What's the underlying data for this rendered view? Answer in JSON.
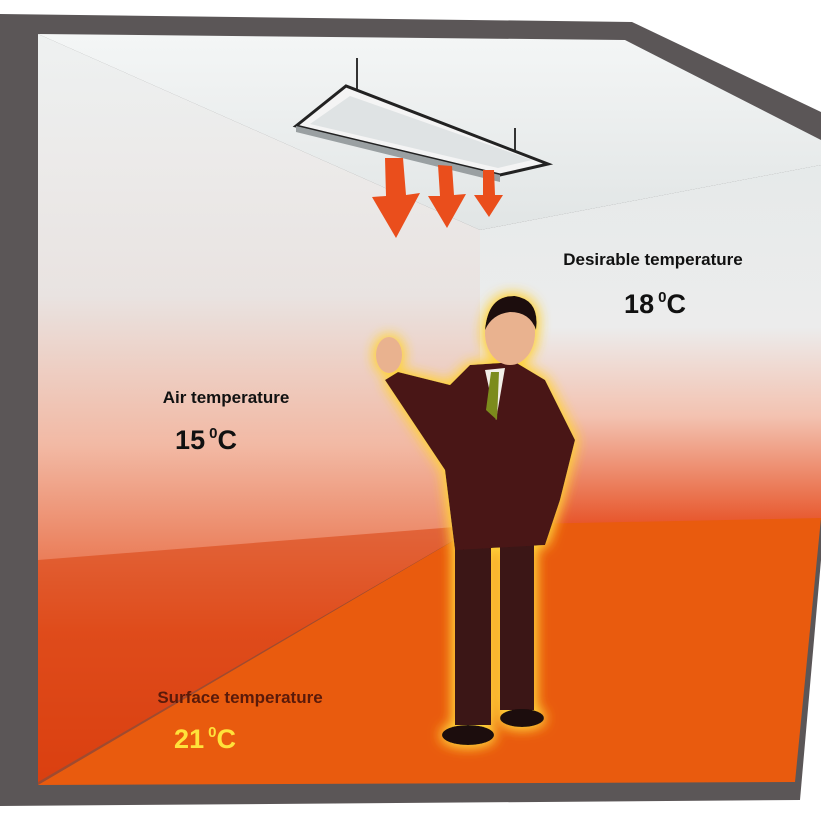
{
  "readings": [
    {
      "label": "Desirable temperature",
      "value": "18",
      "superscript": "0",
      "unit": "C"
    },
    {
      "label": "Air temperature",
      "value": "15",
      "superscript": "0",
      "unit": "C"
    },
    {
      "label": "Surface temperature",
      "value": "21",
      "superscript": "0",
      "unit": "C"
    }
  ]
}
